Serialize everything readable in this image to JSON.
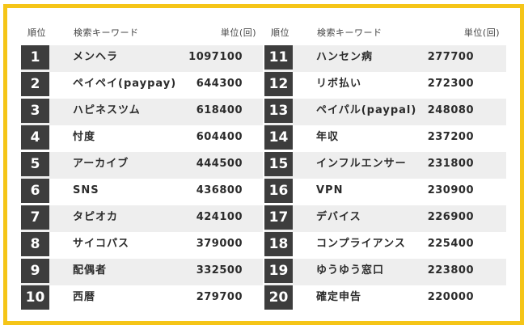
{
  "header": {
    "rank_label": "順位",
    "keyword_label": "検索キーワード",
    "unit_label": "単位(回)"
  },
  "left_rows": [
    {
      "rank": "1",
      "keyword": "メンヘラ",
      "value": "1097100"
    },
    {
      "rank": "2",
      "keyword": "ペイペイ(paypay)",
      "value": "644300"
    },
    {
      "rank": "3",
      "keyword": "ハピネスツム",
      "value": "618400"
    },
    {
      "rank": "4",
      "keyword": "忖度",
      "value": "604400"
    },
    {
      "rank": "5",
      "keyword": "アーカイブ",
      "value": "444500"
    },
    {
      "rank": "6",
      "keyword": "SNS",
      "value": "436800"
    },
    {
      "rank": "7",
      "keyword": "タピオカ",
      "value": "424100"
    },
    {
      "rank": "8",
      "keyword": "サイコパス",
      "value": "379000"
    },
    {
      "rank": "9",
      "keyword": "配偶者",
      "value": "332500"
    },
    {
      "rank": "10",
      "keyword": "西暦",
      "value": "279700"
    }
  ],
  "right_rows": [
    {
      "rank": "11",
      "keyword": "ハンセン病",
      "value": "277700"
    },
    {
      "rank": "12",
      "keyword": "リボ払い",
      "value": "272300"
    },
    {
      "rank": "13",
      "keyword": "ペイパル(paypal)",
      "value": "248080"
    },
    {
      "rank": "14",
      "keyword": "年収",
      "value": "237200"
    },
    {
      "rank": "15",
      "keyword": "インフルエンサー",
      "value": "231800"
    },
    {
      "rank": "16",
      "keyword": "VPN",
      "value": "230900"
    },
    {
      "rank": "17",
      "keyword": "デバイス",
      "value": "226900"
    },
    {
      "rank": "18",
      "keyword": "コンプライアンス",
      "value": "225400"
    },
    {
      "rank": "19",
      "keyword": "ゆうゆう窓口",
      "value": "223800"
    },
    {
      "rank": "20",
      "keyword": "確定申告",
      "value": "220000"
    }
  ],
  "colors": {
    "frame": "#f5c518",
    "rank_box": "#3d3d3d",
    "row_shade": "#eeeeee"
  }
}
